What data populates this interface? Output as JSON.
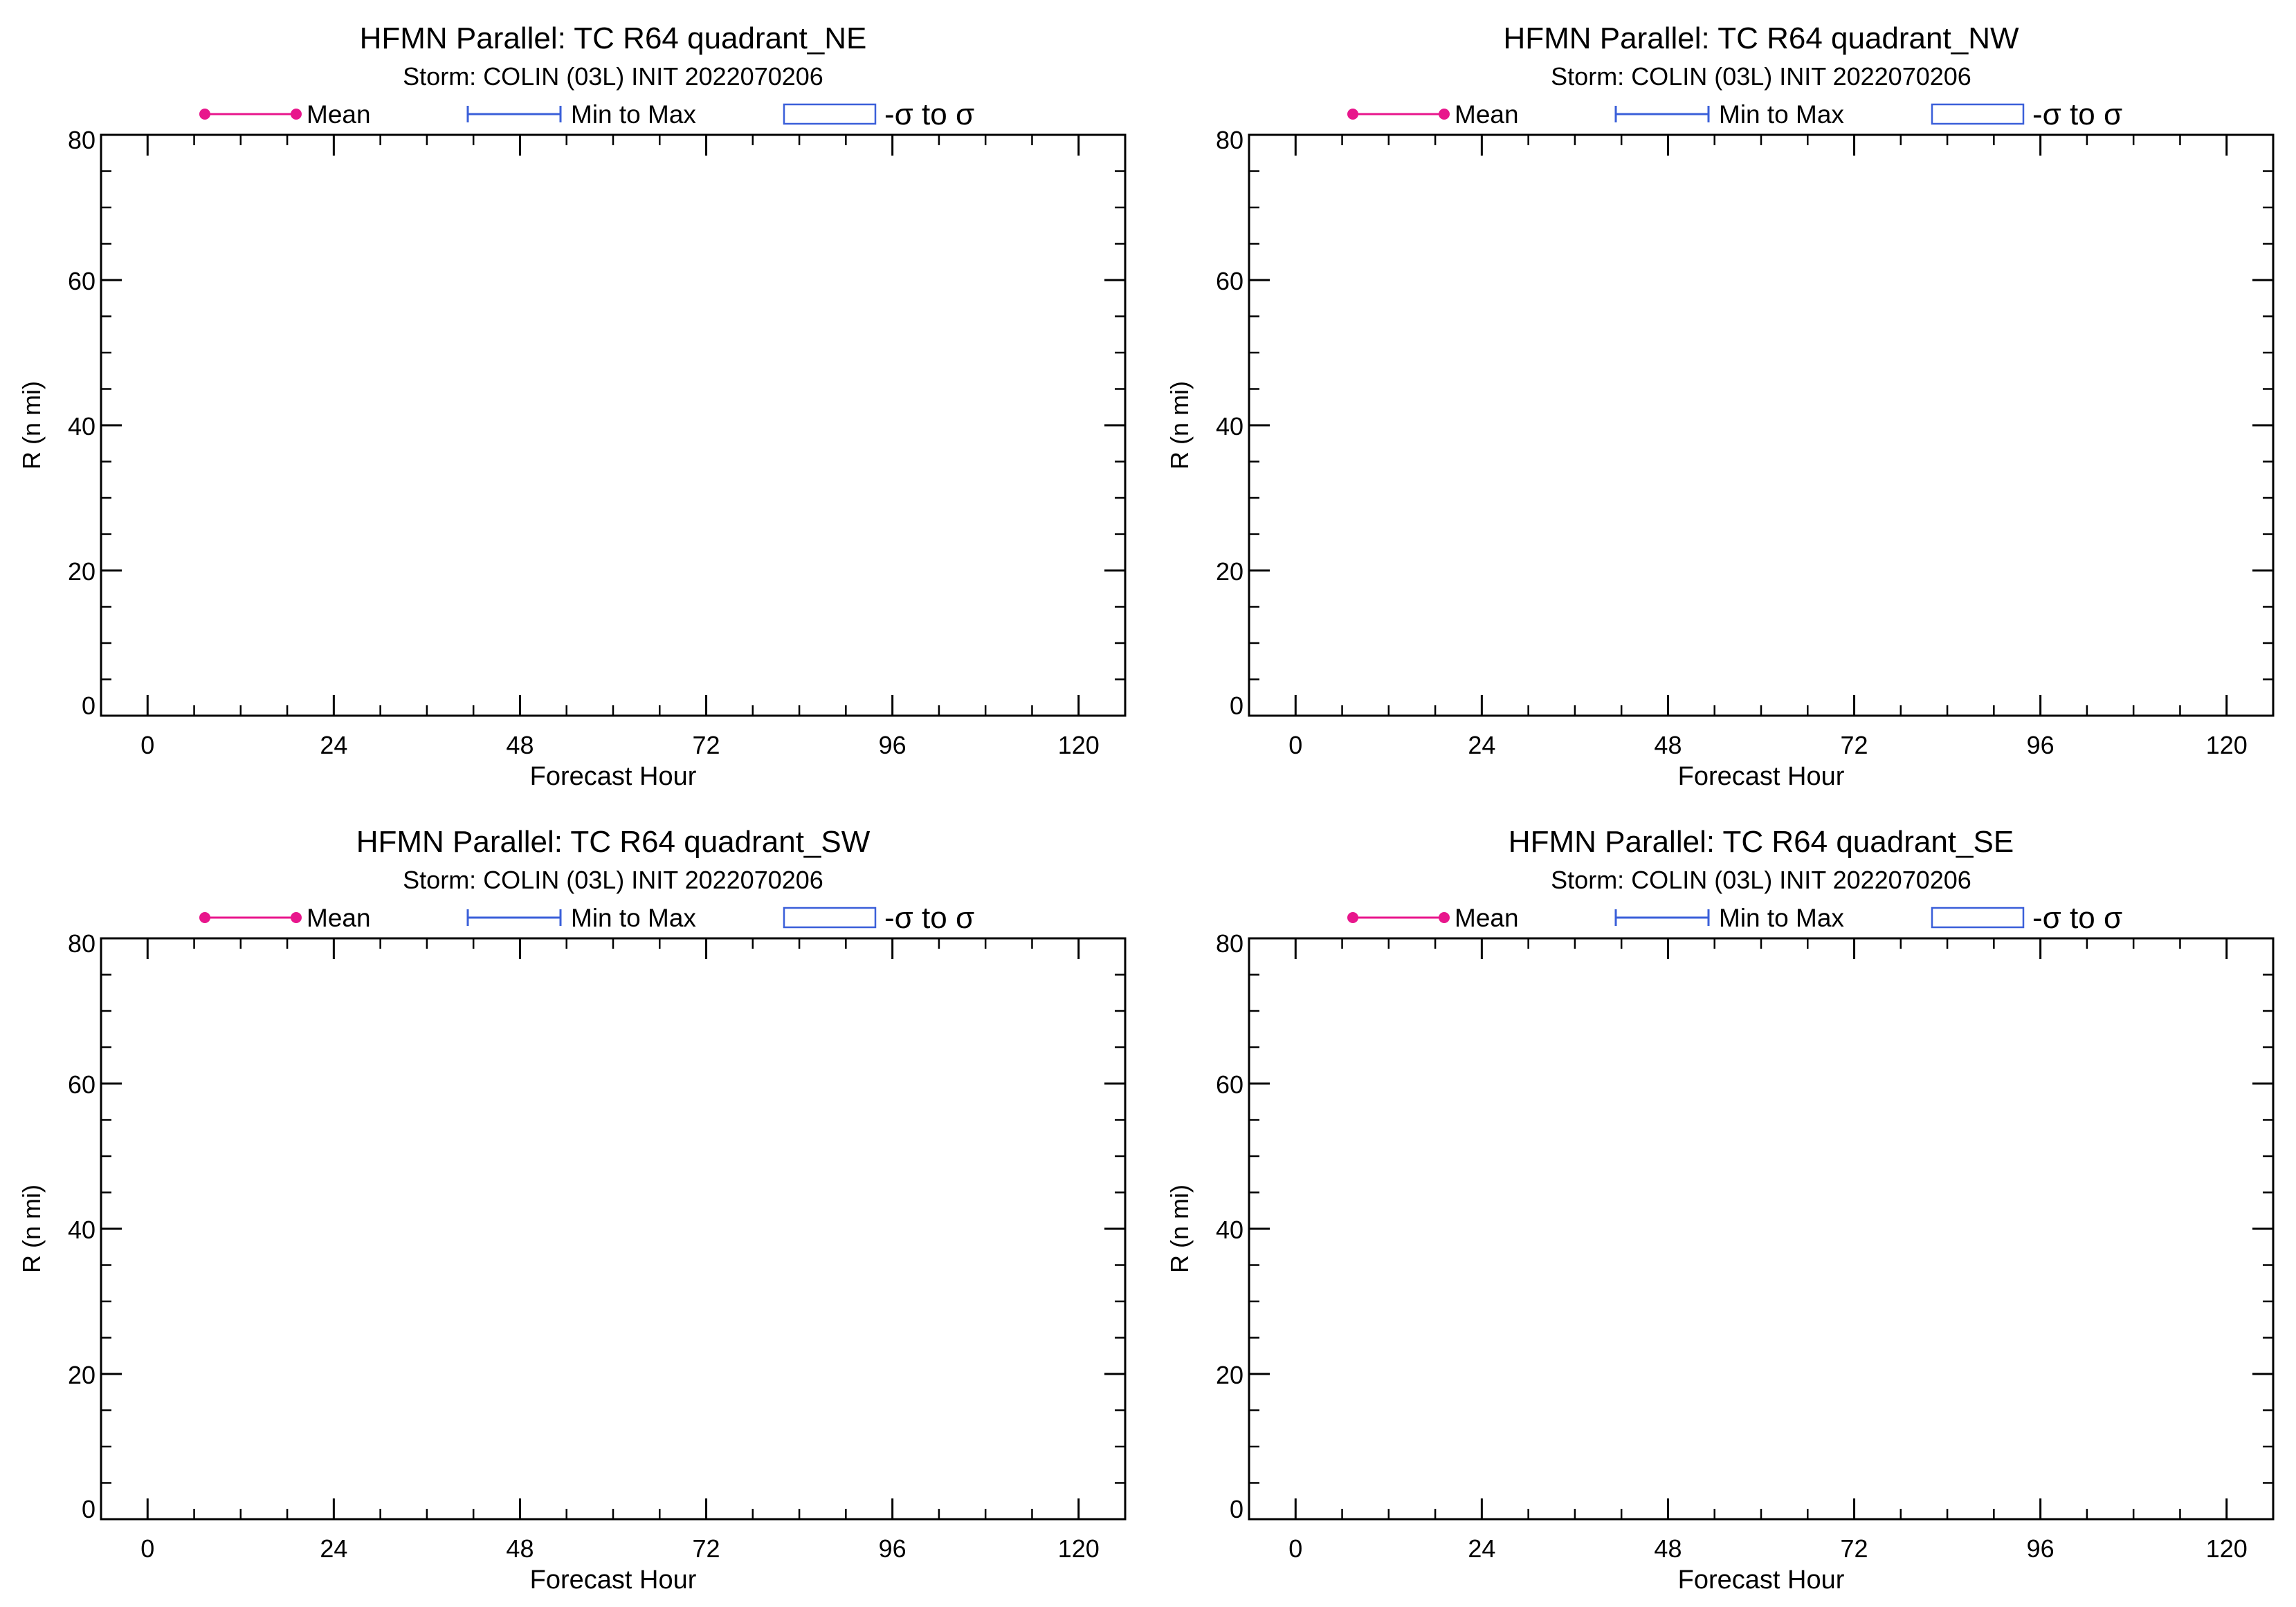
{
  "legend": {
    "mean_label": "Mean",
    "minmax_label": "Min to Max",
    "sigma_label": "-σ to σ",
    "colors": {
      "mean": "#e8168c",
      "minmax": "#3a5fd9",
      "sigma": "#3a5fd9"
    }
  },
  "chart_data": [
    {
      "type": "line",
      "title": "HFMN Parallel: TC  R64 quadrant_NE",
      "subtitle": "Storm: COLIN (03L) INIT 2022070206",
      "xlabel": "Forecast Hour",
      "ylabel": "R (n mi)",
      "xlim": [
        -6,
        126
      ],
      "ylim": [
        0,
        80
      ],
      "xticks": [
        0,
        24,
        48,
        72,
        96,
        120
      ],
      "yticks": [
        0,
        20,
        40,
        60,
        80
      ],
      "series": []
    },
    {
      "type": "line",
      "title": "HFMN Parallel: TC  R64 quadrant_NW",
      "subtitle": "Storm: COLIN (03L) INIT 2022070206",
      "xlabel": "Forecast Hour",
      "ylabel": "R (n mi)",
      "xlim": [
        -6,
        126
      ],
      "ylim": [
        0,
        80
      ],
      "xticks": [
        0,
        24,
        48,
        72,
        96,
        120
      ],
      "yticks": [
        0,
        20,
        40,
        60,
        80
      ],
      "series": []
    },
    {
      "type": "line",
      "title": "HFMN Parallel: TC  R64 quadrant_SW",
      "subtitle": "Storm: COLIN (03L) INIT 2022070206",
      "xlabel": "Forecast Hour",
      "ylabel": "R (n mi)",
      "xlim": [
        -6,
        126
      ],
      "ylim": [
        0,
        80
      ],
      "xticks": [
        0,
        24,
        48,
        72,
        96,
        120
      ],
      "yticks": [
        0,
        20,
        40,
        60,
        80
      ],
      "series": []
    },
    {
      "type": "line",
      "title": "HFMN Parallel: TC  R64 quadrant_SE",
      "subtitle": "Storm: COLIN (03L) INIT 2022070206",
      "xlabel": "Forecast Hour",
      "ylabel": "R (n mi)",
      "xlim": [
        -6,
        126
      ],
      "ylim": [
        0,
        80
      ],
      "xticks": [
        0,
        24,
        48,
        72,
        96,
        120
      ],
      "yticks": [
        0,
        20,
        40,
        60,
        80
      ],
      "series": []
    }
  ]
}
